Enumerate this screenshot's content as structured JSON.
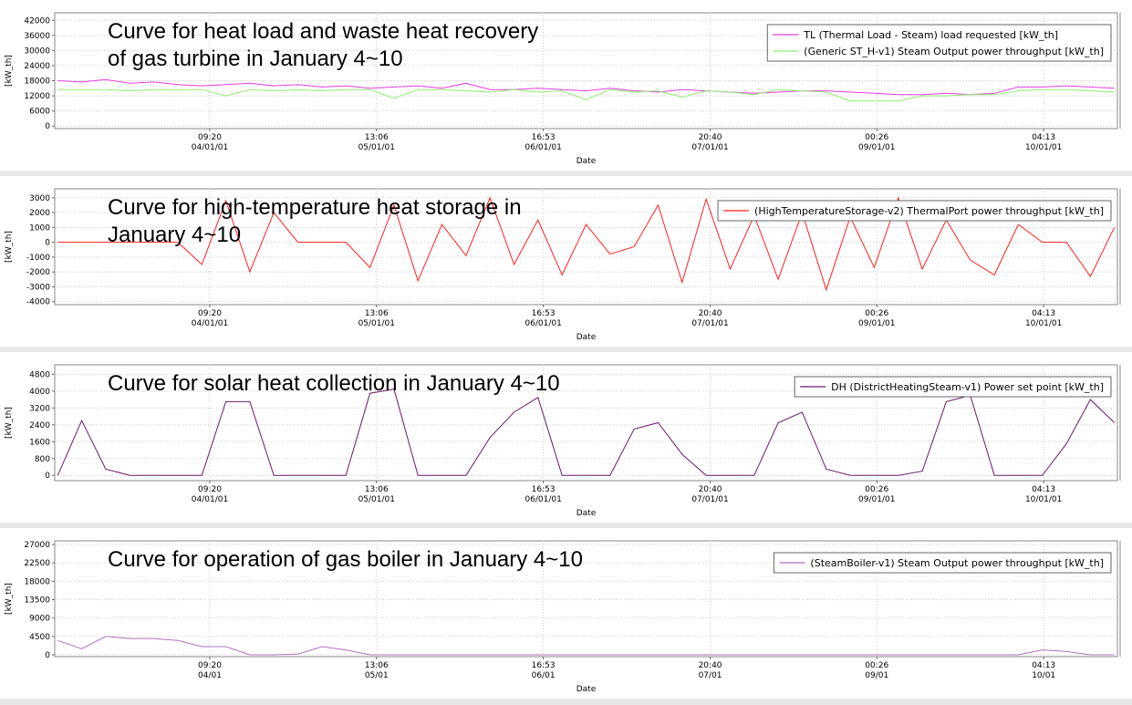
{
  "chart_data": [
    {
      "type": "line",
      "title": "Curve for heat load and waste heat recovery\nof gas turbine in January 4~10",
      "ylabel": "[kW_th]",
      "xlabel": "Date",
      "x": [
        -16,
        -12,
        -8,
        -4,
        0,
        4,
        8,
        12,
        16,
        20,
        24,
        28,
        32,
        36,
        40,
        44,
        48,
        52,
        56,
        60,
        64,
        68,
        72,
        76,
        80,
        84,
        88,
        92,
        96,
        100,
        104,
        108,
        112,
        116,
        120,
        124,
        128,
        132,
        136,
        140,
        144,
        148,
        152,
        156,
        160
      ],
      "xlim": [
        -16.5,
        160.5
      ],
      "xticks": [
        {
          "value": 9.33,
          "label": "09:20\n04/01/01"
        },
        {
          "value": 37.1,
          "label": "13:06\n05/01/01"
        },
        {
          "value": 64.88,
          "label": "16:53\n06/01/01"
        },
        {
          "value": 92.67,
          "label": "20:40\n07/01/01"
        },
        {
          "value": 120.43,
          "label": "00:26\n09/01/01"
        },
        {
          "value": 148.22,
          "label": "04:13\n10/01/01"
        }
      ],
      "ylim": [
        -1000,
        45000
      ],
      "yticks": [
        0,
        6000,
        12000,
        18000,
        24000,
        30000,
        36000,
        42000
      ],
      "grid": true,
      "legend": "upper right",
      "series": [
        {
          "name": "TL (Thermal Load - Steam) load requested [kW_th]",
          "color": "#e040e0",
          "values": [
            18000,
            17500,
            18500,
            17000,
            17500,
            16500,
            16000,
            16500,
            17000,
            16000,
            16500,
            15500,
            16000,
            15000,
            15500,
            16000,
            15000,
            17000,
            14500,
            14500,
            15000,
            14500,
            14000,
            15000,
            14000,
            13500,
            14500,
            14000,
            13500,
            13000,
            13500,
            14000,
            14000,
            13500,
            13000,
            12500,
            12500,
            13000,
            12500,
            13000,
            15500,
            15500,
            16000,
            15500,
            15000
          ]
        },
        {
          "name": "(Generic ST_H-v1) Steam Output power throughput [kW_th]",
          "color": "#90ee70",
          "values": [
            14500,
            14500,
            14500,
            14000,
            14500,
            14500,
            14500,
            12000,
            14500,
            14000,
            14500,
            14000,
            14500,
            14500,
            11000,
            14500,
            14500,
            14000,
            13500,
            14500,
            13500,
            14000,
            10500,
            14500,
            13500,
            14000,
            11500,
            14000,
            13500,
            12500,
            14500,
            14000,
            13500,
            10000,
            10000,
            10000,
            12000,
            12000,
            12500,
            12500,
            14000,
            14500,
            14500,
            14000,
            13500
          ]
        }
      ]
    },
    {
      "type": "line",
      "title": "Curve for high-temperature heat storage in\nJanuary 4~10",
      "ylabel": "[kW_th]",
      "xlabel": "Date",
      "x": [
        -16,
        -12,
        -8,
        -4,
        0,
        4,
        8,
        12,
        16,
        20,
        24,
        28,
        32,
        36,
        40,
        44,
        48,
        52,
        56,
        60,
        64,
        68,
        72,
        76,
        80,
        84,
        88,
        92,
        96,
        100,
        104,
        108,
        112,
        116,
        120,
        124,
        128,
        132,
        136,
        140,
        144,
        148,
        152,
        156,
        160
      ],
      "xlim": [
        -16.5,
        160.5
      ],
      "xticks": [
        {
          "value": 9.33,
          "label": "09:20\n04/01/01"
        },
        {
          "value": 37.1,
          "label": "13:06\n05/01/01"
        },
        {
          "value": 64.88,
          "label": "16:53\n06/01/01"
        },
        {
          "value": 92.67,
          "label": "20:40\n07/01/01"
        },
        {
          "value": 120.43,
          "label": "00:26\n09/01/01"
        },
        {
          "value": 148.22,
          "label": "04:13\n10/01/01"
        }
      ],
      "ylim": [
        -4200,
        3600
      ],
      "yticks": [
        -4000,
        -3000,
        -2000,
        -1000,
        0,
        1000,
        2000,
        3000
      ],
      "grid": true,
      "legend": "upper right",
      "series": [
        {
          "name": "(HighTemperatureStorage-v2) ThermalPort power throughput [kW_th]",
          "color": "#ff2020",
          "values": [
            0,
            0,
            0,
            0,
            0,
            0,
            -1500,
            2800,
            -2000,
            2000,
            0,
            0,
            0,
            -1700,
            2500,
            -2600,
            1200,
            -900,
            3000,
            -1500,
            1500,
            -2200,
            1200,
            -800,
            -300,
            2500,
            -2700,
            2900,
            -1800,
            1800,
            -2500,
            2000,
            -3200,
            1700,
            -1700,
            3000,
            -1800,
            1500,
            -1200,
            -2200,
            1200,
            0,
            0,
            -2300,
            1000
          ]
        }
      ]
    },
    {
      "type": "line",
      "title": "Curve for solar heat collection in January 4~10",
      "ylabel": "[kW_th]",
      "xlabel": "Date",
      "x": [
        -16,
        -12,
        -8,
        -4,
        0,
        4,
        8,
        12,
        16,
        20,
        24,
        28,
        32,
        36,
        40,
        44,
        48,
        52,
        56,
        60,
        64,
        68,
        72,
        76,
        80,
        84,
        88,
        92,
        96,
        100,
        104,
        108,
        112,
        116,
        120,
        124,
        128,
        132,
        136,
        140,
        144,
        148,
        152,
        156,
        160
      ],
      "xlim": [
        -16.5,
        160.5
      ],
      "xticks": [
        {
          "value": 9.33,
          "label": "09:20\n04/01/01"
        },
        {
          "value": 37.1,
          "label": "13:06\n05/01/01"
        },
        {
          "value": 64.88,
          "label": "16:53\n06/01/01"
        },
        {
          "value": 92.67,
          "label": "20:40\n07/01/01"
        },
        {
          "value": 120.43,
          "label": "00:26\n09/01/01"
        },
        {
          "value": 148.22,
          "label": "04:13\n10/01/01"
        }
      ],
      "ylim": [
        -250,
        5250
      ],
      "yticks": [
        0,
        800,
        1600,
        2400,
        3200,
        4000,
        4800
      ],
      "grid": true,
      "legend": "upper right",
      "series": [
        {
          "name": "DH (DistrictHeatingSteam-v1) Power set point [kW_th]",
          "color": "#6a1a6a",
          "values": [
            0,
            2600,
            300,
            0,
            0,
            0,
            0,
            3500,
            3500,
            0,
            0,
            0,
            0,
            3900,
            4100,
            0,
            0,
            0,
            1800,
            3000,
            3700,
            0,
            0,
            0,
            2200,
            2500,
            1000,
            0,
            0,
            0,
            2500,
            3000,
            300,
            0,
            0,
            0,
            200,
            3500,
            3800,
            0,
            0,
            0,
            1500,
            3600,
            2500
          ]
        }
      ]
    },
    {
      "type": "line",
      "title": "Curve for operation of gas boiler in January 4~10",
      "ylabel": "[kW_th]",
      "xlabel": "Date",
      "x": [
        -16,
        -12,
        -8,
        -4,
        0,
        4,
        8,
        12,
        16,
        20,
        24,
        28,
        32,
        36,
        40,
        44,
        48,
        52,
        56,
        60,
        64,
        68,
        72,
        76,
        80,
        84,
        88,
        92,
        96,
        100,
        104,
        108,
        112,
        116,
        120,
        124,
        128,
        132,
        136,
        140,
        144,
        148,
        152,
        156,
        160
      ],
      "xlim": [
        -16.5,
        160.5
      ],
      "xticks": [
        {
          "value": 9.33,
          "label": "09:20\n04/01"
        },
        {
          "value": 37.1,
          "label": "13:06\n05/01"
        },
        {
          "value": 64.88,
          "label": "16:53\n06/01"
        },
        {
          "value": 92.67,
          "label": "20:40\n07/01"
        },
        {
          "value": 120.43,
          "label": "00:26\n09/01"
        },
        {
          "value": 148.22,
          "label": "04:13\n10/01"
        }
      ],
      "ylim": [
        -450,
        27900
      ],
      "yticks": [
        0,
        4500,
        9000,
        13500,
        18000,
        22500,
        27000
      ],
      "grid": true,
      "legend": "upper right",
      "series": [
        {
          "name": "(SteamBoiler-v1) Steam Output power throughput [kW_th]",
          "color": "#b070c0",
          "values": [
            3500,
            1500,
            4500,
            4000,
            4000,
            3500,
            2000,
            2000,
            0,
            0,
            200,
            2000,
            1200,
            0,
            0,
            0,
            0,
            0,
            0,
            0,
            0,
            0,
            0,
            0,
            0,
            0,
            0,
            0,
            0,
            0,
            0,
            0,
            0,
            0,
            0,
            0,
            0,
            0,
            0,
            0,
            0,
            1200,
            800,
            0,
            0
          ]
        }
      ]
    }
  ]
}
